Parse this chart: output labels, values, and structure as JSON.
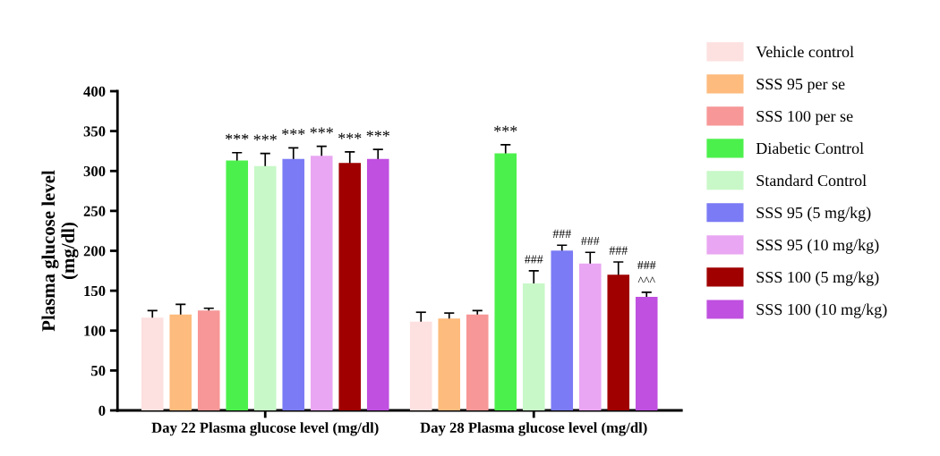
{
  "chart_data": {
    "type": "bar",
    "ylabel": "Plasma glucose level\n(mg/dl)",
    "categories": [
      "Day 22 Plasma glucose level (mg/dl)",
      "Day 28 Plasma glucose level (mg/dl)"
    ],
    "ylim": [
      0,
      400
    ],
    "yticks": [
      0,
      50,
      100,
      150,
      200,
      250,
      300,
      350,
      400
    ],
    "grid": false,
    "legend": "right",
    "series": [
      {
        "name": "Vehicle control",
        "color": "#fde0e0",
        "values": [
          115,
          110
        ],
        "errors": [
          10,
          13
        ]
      },
      {
        "name": "SSS 95 per se",
        "color": "#fdbb7d",
        "values": [
          119,
          114
        ],
        "errors": [
          14,
          8
        ]
      },
      {
        "name": "SSS 100 per se",
        "color": "#f79797",
        "values": [
          124,
          119
        ],
        "errors": [
          4,
          6
        ]
      },
      {
        "name": "Diabetic Control",
        "color": "#4cf04c",
        "values": [
          312,
          321
        ],
        "errors": [
          11,
          12
        ],
        "value_labels": [
          "***",
          "***"
        ]
      },
      {
        "name": "Standard Control",
        "color": "#c8f8c8",
        "values": [
          305,
          158
        ],
        "errors": [
          17,
          17
        ],
        "value_labels": [
          "***",
          "###"
        ]
      },
      {
        "name": "SSS 95 (5 mg/kg)",
        "color": "#7b7bf5",
        "values": [
          314,
          199
        ],
        "errors": [
          15,
          8
        ],
        "value_labels": [
          "***",
          "###"
        ]
      },
      {
        "name": "SSS 95 (10 mg/kg)",
        "color": "#e9a6f2",
        "values": [
          318,
          183
        ],
        "errors": [
          13,
          15
        ],
        "value_labels": [
          "***",
          "###"
        ]
      },
      {
        "name": "SSS 100 (5 mg/kg)",
        "color": "#a00000",
        "values": [
          309,
          169
        ],
        "errors": [
          15,
          17
        ],
        "value_labels": [
          "***",
          "###"
        ]
      },
      {
        "name": "SSS 100 (10 mg/kg)",
        "color": "#c050e0",
        "values": [
          314,
          141
        ],
        "errors": [
          13,
          7
        ],
        "value_labels": [
          "***",
          "###\n\n^^^"
        ]
      }
    ]
  }
}
